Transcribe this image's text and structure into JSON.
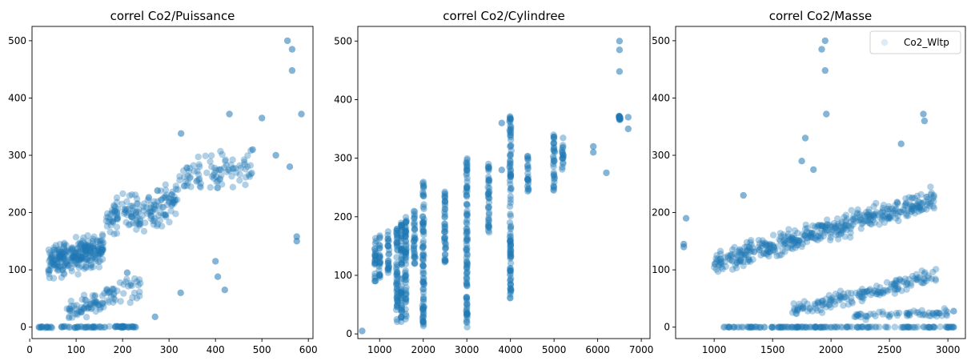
{
  "chart_data": [
    {
      "type": "scatter",
      "title": "correl Co2/Puissance",
      "xlabel": "",
      "ylabel": "",
      "xlim": [
        5,
        610
      ],
      "ylim": [
        -20,
        525
      ],
      "xticks": [
        0,
        100,
        200,
        300,
        400,
        500,
        600
      ],
      "yticks": [
        0,
        100,
        200,
        300,
        400,
        500
      ],
      "color": "#1f77b4",
      "alpha": 0.08,
      "legend": null,
      "clusters": [
        {
          "x_range": [
            40,
            160
          ],
          "y_center": 125,
          "y_spread": 40,
          "n": 260
        },
        {
          "x_range": [
            160,
            320
          ],
          "y_center": 205,
          "y_spread": 45,
          "n": 160
        },
        {
          "x_range": [
            320,
            480
          ],
          "y_center": 270,
          "y_spread": 45,
          "n": 90
        },
        {
          "x_range": [
            80,
            160
          ],
          "y_center": 35,
          "y_spread": 25,
          "n": 60
        },
        {
          "x_range": [
            160,
            240
          ],
          "y_center": 60,
          "y_spread": 35,
          "n": 40
        },
        {
          "x_range": [
            20,
            230
          ],
          "y_center": 0,
          "y_spread": 2,
          "n": 90
        }
      ],
      "points": [
        {
          "x": 20,
          "y": 0
        },
        {
          "x": 228,
          "y": 0
        },
        {
          "x": 210,
          "y": 95
        },
        {
          "x": 270,
          "y": 18
        },
        {
          "x": 325,
          "y": 60
        },
        {
          "x": 405,
          "y": 88
        },
        {
          "x": 420,
          "y": 65
        },
        {
          "x": 326,
          "y": 338
        },
        {
          "x": 430,
          "y": 372
        },
        {
          "x": 585,
          "y": 372
        },
        {
          "x": 565,
          "y": 485
        },
        {
          "x": 565,
          "y": 448
        },
        {
          "x": 555,
          "y": 500
        },
        {
          "x": 575,
          "y": 158
        },
        {
          "x": 575,
          "y": 150
        },
        {
          "x": 560,
          "y": 280
        },
        {
          "x": 530,
          "y": 300
        },
        {
          "x": 480,
          "y": 310
        },
        {
          "x": 500,
          "y": 365
        },
        {
          "x": 400,
          "y": 115
        }
      ]
    },
    {
      "type": "scatter",
      "title": "correl Co2/Cylindree",
      "xlabel": "",
      "ylabel": "",
      "xlim": [
        500,
        7200
      ],
      "ylim": [
        -8,
        525
      ],
      "xticks": [
        1000,
        2000,
        3000,
        4000,
        5000,
        6000,
        7000
      ],
      "yticks": [
        0,
        100,
        200,
        300,
        400,
        500
      ],
      "color": "#1f77b4",
      "alpha": 0.08,
      "legend": null,
      "columns": [
        {
          "x": 900,
          "y_min": 90,
          "y_max": 165
        },
        {
          "x": 1000,
          "y_min": 95,
          "y_max": 170
        },
        {
          "x": 1200,
          "y_min": 100,
          "y_max": 175
        },
        {
          "x": 1400,
          "y_min": 20,
          "y_max": 185
        },
        {
          "x": 1500,
          "y_min": 20,
          "y_max": 190
        },
        {
          "x": 1600,
          "y_min": 25,
          "y_max": 200
        },
        {
          "x": 1800,
          "y_min": 110,
          "y_max": 210
        },
        {
          "x": 2000,
          "y_min": 10,
          "y_max": 265
        },
        {
          "x": 2500,
          "y_min": 120,
          "y_max": 250
        },
        {
          "x": 3000,
          "y_min": 10,
          "y_max": 300
        },
        {
          "x": 3500,
          "y_min": 170,
          "y_max": 290
        },
        {
          "x": 4000,
          "y_min": 60,
          "y_max": 372
        },
        {
          "x": 4400,
          "y_min": 240,
          "y_max": 310
        },
        {
          "x": 5000,
          "y_min": 240,
          "y_max": 340
        },
        {
          "x": 5200,
          "y_min": 280,
          "y_max": 335
        },
        {
          "x": 6500,
          "y_min": 365,
          "y_max": 372
        }
      ],
      "points": [
        {
          "x": 600,
          "y": 5
        },
        {
          "x": 6500,
          "y": 485
        },
        {
          "x": 6500,
          "y": 448
        },
        {
          "x": 6500,
          "y": 500
        },
        {
          "x": 6700,
          "y": 350
        },
        {
          "x": 6700,
          "y": 370
        },
        {
          "x": 6200,
          "y": 275
        },
        {
          "x": 5900,
          "y": 320
        },
        {
          "x": 5900,
          "y": 310
        },
        {
          "x": 3800,
          "y": 360
        },
        {
          "x": 3800,
          "y": 280
        }
      ]
    },
    {
      "type": "scatter",
      "title": "correl Co2/Masse",
      "xlabel": "",
      "ylabel": "",
      "xlim": [
        670,
        3150
      ],
      "ylim": [
        -20,
        525
      ],
      "xticks": [
        1000,
        1500,
        2000,
        2500,
        3000
      ],
      "yticks": [
        0,
        100,
        200,
        300,
        400,
        500
      ],
      "color": "#1f77b4",
      "alpha": 0.08,
      "legend": {
        "label": "Co2_Wltp",
        "placement": "top-right"
      },
      "bands": [
        {
          "x_range": [
            1000,
            2900
          ],
          "y_start": 112,
          "y_end": 225,
          "y_spread": 28,
          "n": 420
        },
        {
          "x_range": [
            1650,
            2900
          ],
          "y_start": 25,
          "y_end": 90,
          "y_spread": 18,
          "n": 160
        },
        {
          "x_range": [
            2200,
            3000
          ],
          "y_start": 20,
          "y_end": 25,
          "y_spread": 10,
          "n": 60
        },
        {
          "x_range": [
            1080,
            3050
          ],
          "y_start": 0,
          "y_end": 0,
          "y_spread": 1,
          "n": 160
        }
      ],
      "points": [
        {
          "x": 740,
          "y": 145
        },
        {
          "x": 740,
          "y": 140
        },
        {
          "x": 760,
          "y": 190
        },
        {
          "x": 1250,
          "y": 230
        },
        {
          "x": 1920,
          "y": 485
        },
        {
          "x": 1950,
          "y": 448
        },
        {
          "x": 1950,
          "y": 500
        },
        {
          "x": 1960,
          "y": 372
        },
        {
          "x": 2790,
          "y": 372
        },
        {
          "x": 2800,
          "y": 360
        },
        {
          "x": 2600,
          "y": 320
        },
        {
          "x": 1780,
          "y": 330
        },
        {
          "x": 1850,
          "y": 275
        },
        {
          "x": 1750,
          "y": 290
        },
        {
          "x": 3050,
          "y": 28
        },
        {
          "x": 3050,
          "y": 0
        }
      ]
    }
  ]
}
